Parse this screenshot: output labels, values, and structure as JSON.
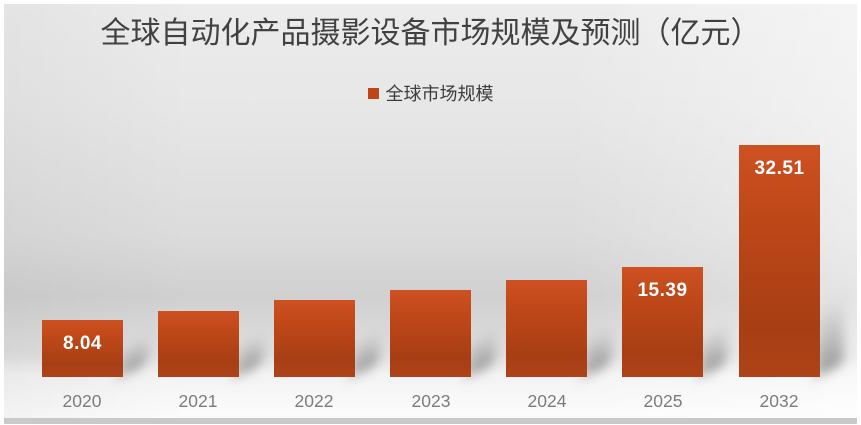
{
  "chart": {
    "title": "全球自动化产品摄影设备市场规模及预测（亿元）",
    "legend_label": "全球市场规模"
  },
  "chart_data": {
    "type": "bar",
    "title": "全球自动化产品摄影设备市场规模及预测（亿元）",
    "xlabel": "",
    "ylabel": "",
    "ylim": [
      0,
      35
    ],
    "grid": false,
    "legend_position": "top-center",
    "legend": [
      "全球市场规模"
    ],
    "categories": [
      "2020",
      "2021",
      "2022",
      "2023",
      "2024",
      "2025",
      "2032"
    ],
    "series": [
      {
        "name": "全球市场规模",
        "values": [
          8.04,
          9.2,
          10.8,
          12.2,
          13.6,
          15.39,
          32.51
        ]
      }
    ],
    "data_labels": [
      "8.04",
      "",
      "",
      "",
      "",
      "15.39",
      "32.51"
    ],
    "colors": {
      "bar_top": "#CE5122",
      "bar_bottom": "#A83E14",
      "legend_marker": "#BF4517",
      "title_text": "#414141",
      "axis_label_text": "#7C7C7C",
      "data_label_text": "#FFFFFF"
    }
  }
}
